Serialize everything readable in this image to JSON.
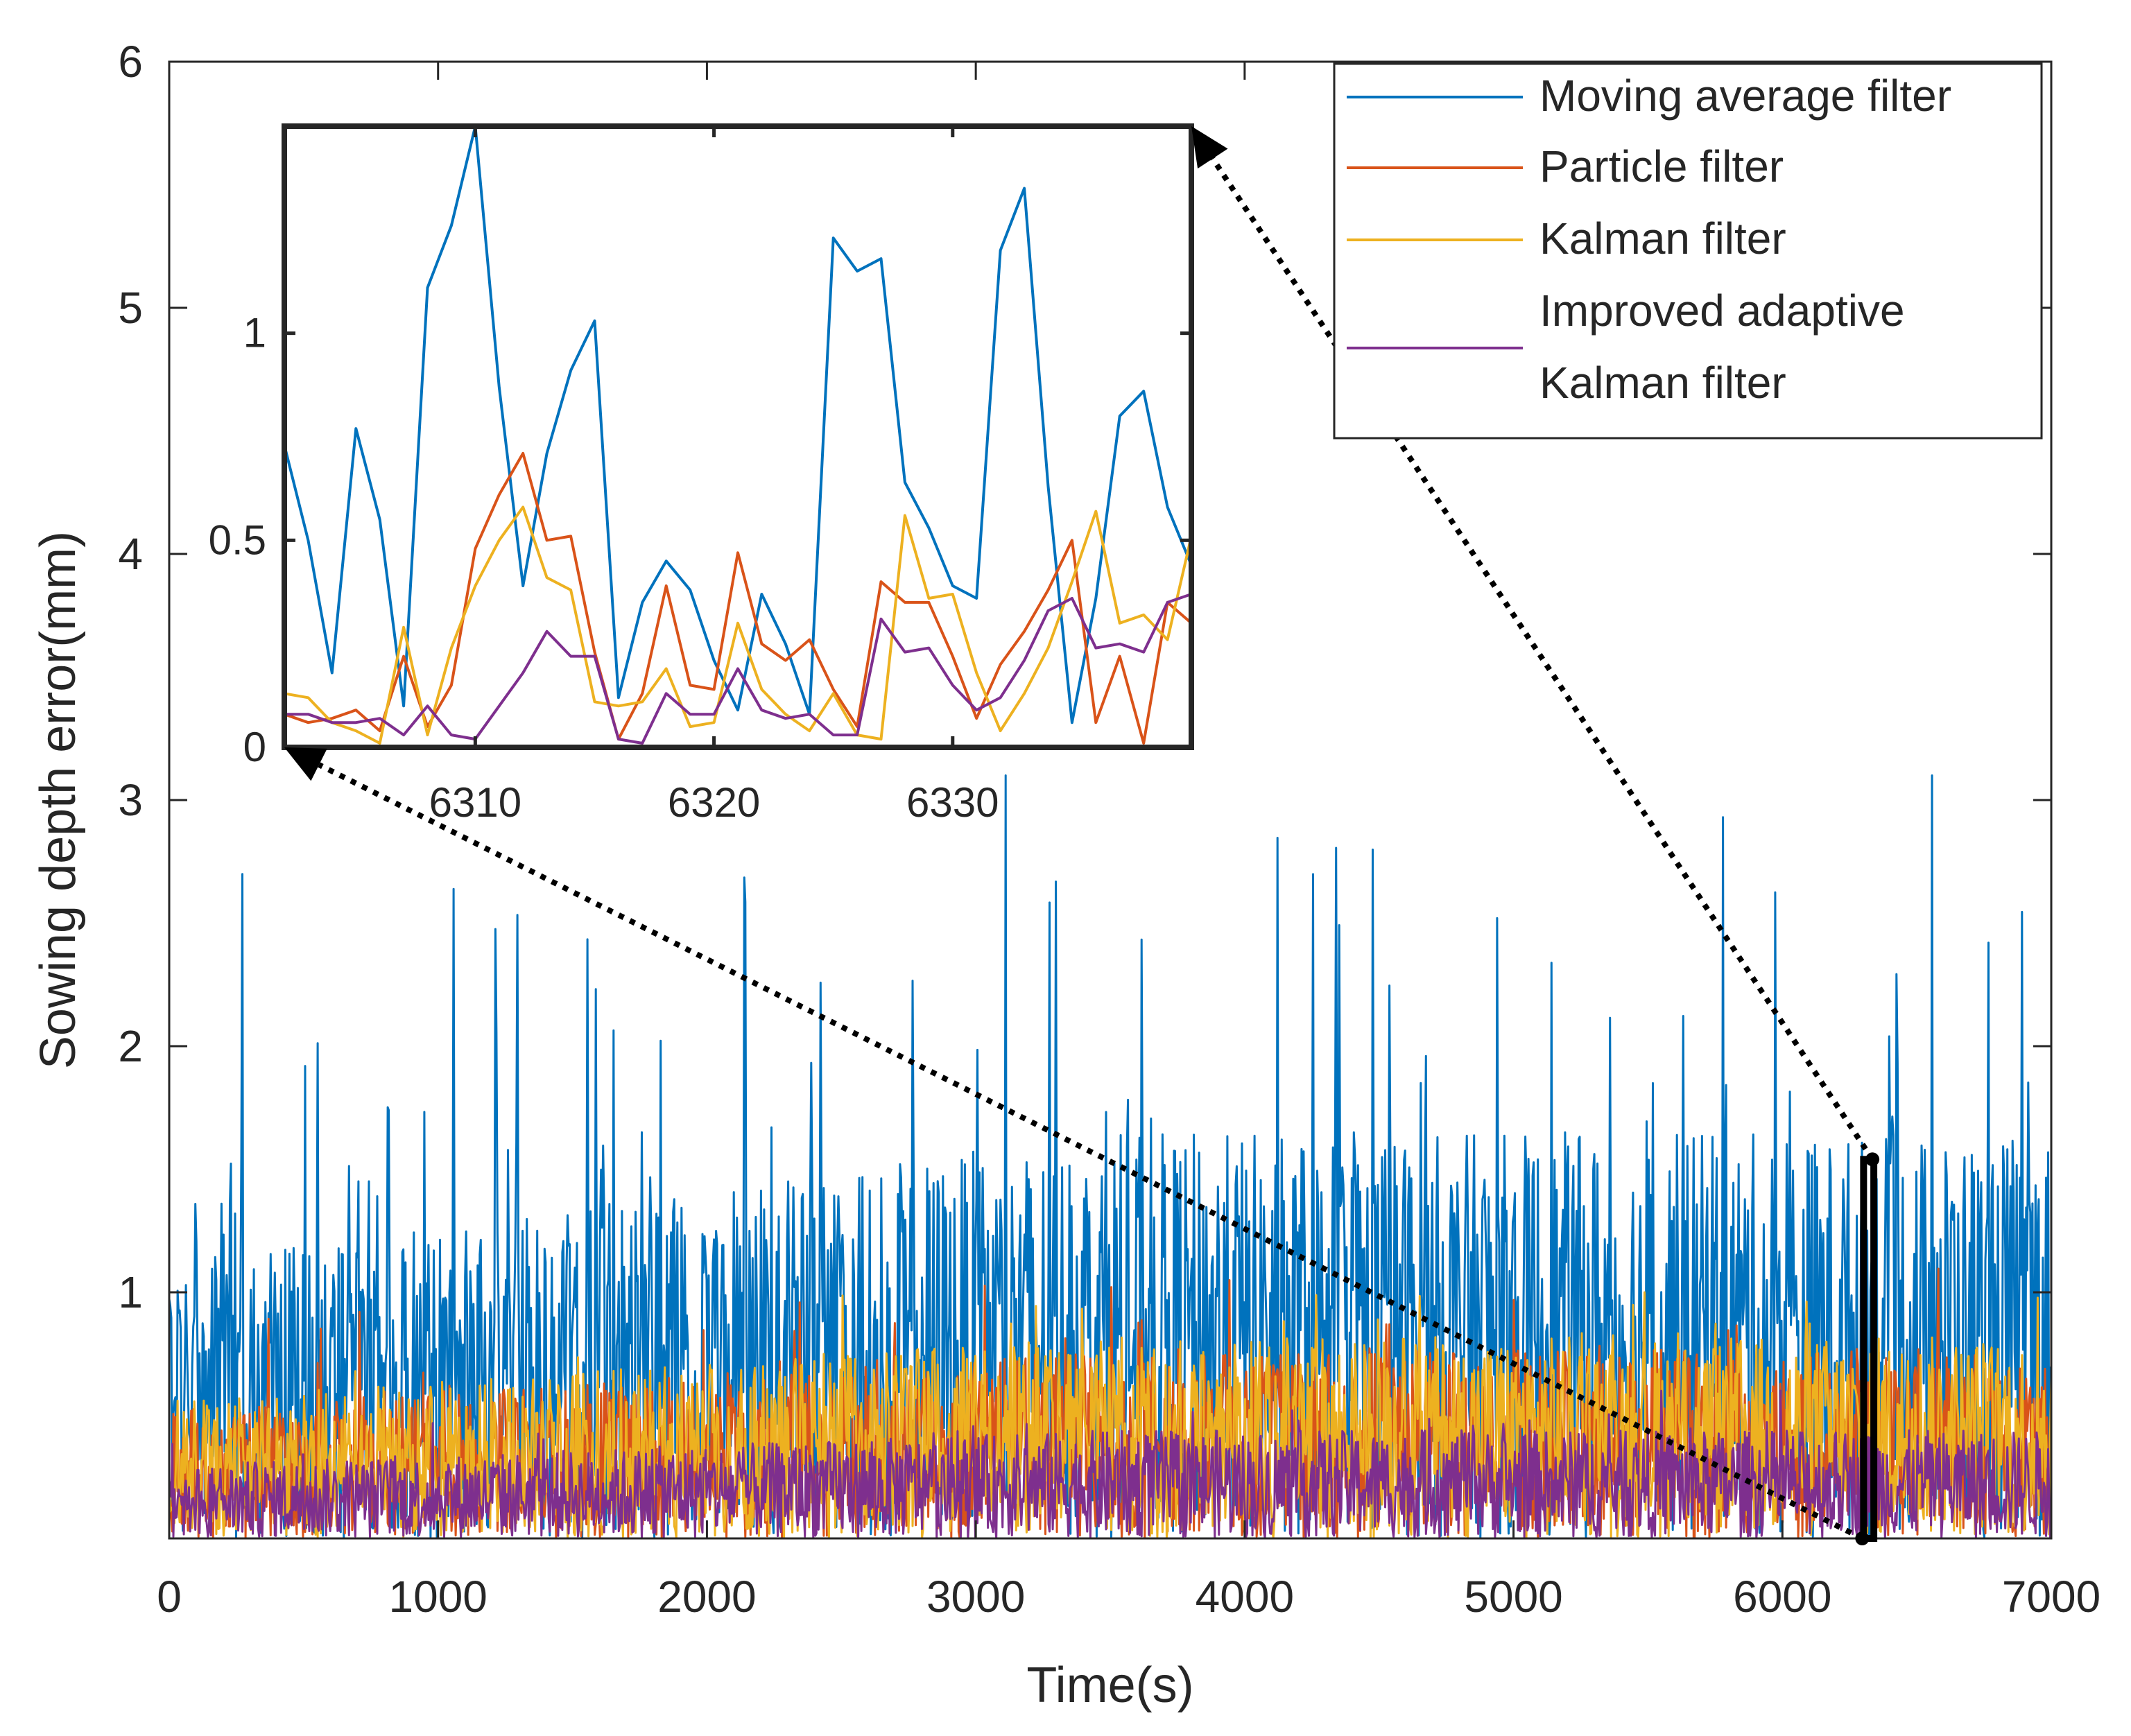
{
  "chart_data": {
    "type": "line",
    "xlabel": "Time(s)",
    "ylabel": "Sowing depth error(mm)",
    "xlim": [
      0,
      7000
    ],
    "ylim": [
      0,
      6
    ],
    "xticks": [
      "0",
      "1000",
      "2000",
      "3000",
      "4000",
      "5000",
      "6000",
      "7000"
    ],
    "yticks": [
      "1",
      "2",
      "3",
      "4",
      "5",
      "6"
    ],
    "legend_position": "top-right",
    "legend_lines": [
      [
        "Moving average filter"
      ],
      [
        "Particle filter"
      ],
      [
        "Kalman filter"
      ],
      [
        "Improved adaptive",
        "Kalman filter"
      ]
    ],
    "series": [
      {
        "name": "Moving average filter",
        "color": "#0072BD",
        "approx_typical_peak": 1.5,
        "max_value": 3.1
      },
      {
        "name": "Particle filter",
        "color": "#D95319",
        "approx_typical_peak": 0.7,
        "max_value": 1.1
      },
      {
        "name": "Kalman filter",
        "color": "#EDB120",
        "approx_typical_peak": 0.75,
        "max_value": 1.0
      },
      {
        "name": "Improved adaptive Kalman filter",
        "color": "#7E2F8E",
        "approx_typical_peak": 0.4,
        "max_value": 0.6
      }
    ],
    "zoom_region": {
      "x_start": 6302,
      "x_end": 6340
    },
    "inset": {
      "type": "line",
      "xlim": [
        6302,
        6340
      ],
      "ylim": [
        0,
        1.5
      ],
      "xticks": [
        "6310",
        "6320",
        "6330"
      ],
      "yticks": [
        "0",
        "0.5",
        "1"
      ],
      "x": [
        6302,
        6303,
        6304,
        6305,
        6306,
        6307,
        6308,
        6309,
        6310,
        6311,
        6312,
        6313,
        6314,
        6315,
        6316,
        6317,
        6318,
        6319,
        6320,
        6321,
        6322,
        6323,
        6324,
        6325,
        6326,
        6327,
        6328,
        6329,
        6330,
        6331,
        6332,
        6333,
        6334,
        6335,
        6336,
        6337,
        6338,
        6339,
        6340
      ],
      "series": [
        {
          "name": "Moving average filter",
          "color": "#0072BD",
          "values": [
            0.73,
            0.5,
            0.18,
            0.77,
            0.55,
            0.1,
            1.11,
            1.26,
            1.5,
            0.87,
            0.39,
            0.71,
            0.91,
            1.03,
            0.12,
            0.35,
            0.45,
            0.38,
            0.21,
            0.09,
            0.37,
            0.25,
            0.08,
            1.23,
            1.15,
            1.18,
            0.64,
            0.53,
            0.39,
            0.36,
            1.2,
            1.35,
            0.63,
            0.06,
            0.36,
            0.8,
            0.86,
            0.58,
            0.44
          ]
        },
        {
          "name": "Particle filter",
          "color": "#D95319",
          "values": [
            0.08,
            0.06,
            0.07,
            0.09,
            0.04,
            0.22,
            0.05,
            0.15,
            0.48,
            0.61,
            0.71,
            0.5,
            0.51,
            0.23,
            0.02,
            0.13,
            0.39,
            0.15,
            0.14,
            0.47,
            0.25,
            0.21,
            0.26,
            0.14,
            0.05,
            0.4,
            0.35,
            0.35,
            0.22,
            0.07,
            0.2,
            0.28,
            0.38,
            0.5,
            0.06,
            0.22,
            0.01,
            0.35,
            0.3
          ]
        },
        {
          "name": "Kalman filter",
          "color": "#EDB120",
          "values": [
            0.13,
            0.12,
            0.06,
            0.04,
            0.01,
            0.29,
            0.03,
            0.24,
            0.39,
            0.5,
            0.58,
            0.41,
            0.38,
            0.11,
            0.1,
            0.11,
            0.19,
            0.05,
            0.06,
            0.3,
            0.14,
            0.08,
            0.04,
            0.13,
            0.03,
            0.02,
            0.56,
            0.36,
            0.37,
            0.18,
            0.04,
            0.13,
            0.24,
            0.4,
            0.57,
            0.3,
            0.32,
            0.26,
            0.51
          ]
        },
        {
          "name": "Improved adaptive Kalman filter",
          "color": "#7E2F8E",
          "values": [
            0.08,
            0.08,
            0.06,
            0.06,
            0.07,
            0.03,
            0.1,
            0.03,
            0.02,
            0.1,
            0.18,
            0.28,
            0.22,
            0.22,
            0.02,
            0.01,
            0.13,
            0.08,
            0.08,
            0.19,
            0.09,
            0.07,
            0.08,
            0.03,
            0.03,
            0.31,
            0.23,
            0.24,
            0.15,
            0.09,
            0.12,
            0.21,
            0.33,
            0.36,
            0.24,
            0.25,
            0.23,
            0.35,
            0.37
          ]
        }
      ]
    }
  }
}
